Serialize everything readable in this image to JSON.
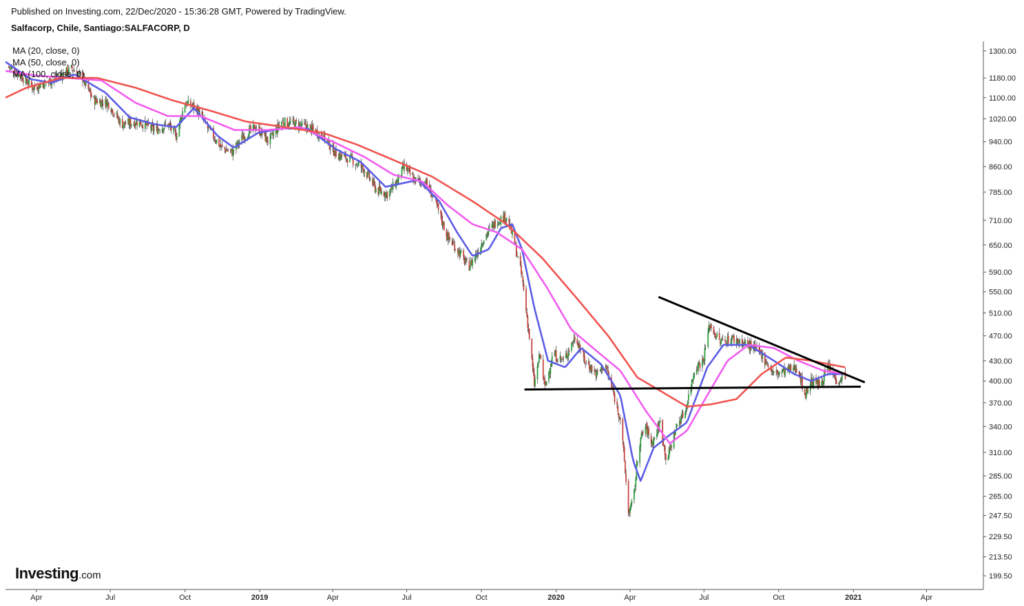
{
  "header": {
    "published": "Published on Investing.com, 22/Dec/2020 - 15:36:28 GMT, Powered by TradingView.",
    "symbol": "Salfacorp, Chile, Santiago:SALFACORP, D"
  },
  "legend": [
    {
      "label": "MA (20, close, 0)",
      "color": "#5b5ce6"
    },
    {
      "label": "MA (50, close, 0)",
      "color": "#f25cf0"
    },
    {
      "label": "MA (100, close, 0)",
      "color": "#f0534f"
    }
  ],
  "logo": {
    "brand": "Investing",
    "suffix": ".com"
  },
  "chart_data": {
    "type": "candlestick",
    "title": "Salfacorp, Chile, Santiago:SALFACORP, D",
    "y_scale": "log",
    "ylim": [
      190,
      1345
    ],
    "y_ticks": [
      {
        "value": 1300,
        "label": "1300.00"
      },
      {
        "value": 1180,
        "label": "1180.00"
      },
      {
        "value": 1100,
        "label": "1100.00"
      },
      {
        "value": 1020,
        "label": "1020.00"
      },
      {
        "value": 940,
        "label": "940.00"
      },
      {
        "value": 860,
        "label": "860.00"
      },
      {
        "value": 785,
        "label": "785.00"
      },
      {
        "value": 710,
        "label": "710.00"
      },
      {
        "value": 650,
        "label": "650.00"
      },
      {
        "value": 590,
        "label": "590.00"
      },
      {
        "value": 550,
        "label": "550.00"
      },
      {
        "value": 510,
        "label": "510.00"
      },
      {
        "value": 470,
        "label": "470.00"
      },
      {
        "value": 430,
        "label": "430.00"
      },
      {
        "value": 400,
        "label": "400.00"
      },
      {
        "value": 370,
        "label": "370.00"
      },
      {
        "value": 340,
        "label": "340.00"
      },
      {
        "value": 310,
        "label": "310.00"
      },
      {
        "value": 285,
        "label": "285.00"
      },
      {
        "value": 265,
        "label": "265.00"
      },
      {
        "value": 247.5,
        "label": "247.50"
      },
      {
        "value": 229.5,
        "label": "229.50"
      },
      {
        "value": 213.5,
        "label": "213.50"
      },
      {
        "value": 199.5,
        "label": "199.50"
      }
    ],
    "x_range": [
      "2018-02-22",
      "2021-06-10"
    ],
    "x_ticks": [
      {
        "date": "2018-04-01",
        "label": "Apr",
        "year": false
      },
      {
        "date": "2018-07-01",
        "label": "Jul",
        "year": false
      },
      {
        "date": "2018-10-01",
        "label": "Oct",
        "year": false
      },
      {
        "date": "2019-01-01",
        "label": "2019",
        "year": true
      },
      {
        "date": "2019-04-01",
        "label": "Apr",
        "year": false
      },
      {
        "date": "2019-07-01",
        "label": "Jul",
        "year": false
      },
      {
        "date": "2019-10-01",
        "label": "Oct",
        "year": false
      },
      {
        "date": "2020-01-01",
        "label": "2020",
        "year": true
      },
      {
        "date": "2020-04-01",
        "label": "Apr",
        "year": false
      },
      {
        "date": "2020-07-01",
        "label": "Jul",
        "year": false
      },
      {
        "date": "2020-10-01",
        "label": "Oct",
        "year": false
      },
      {
        "date": "2021-01-01",
        "label": "2021",
        "year": true
      },
      {
        "date": "2021-04-01",
        "label": "Apr",
        "year": false
      }
    ],
    "colors": {
      "up": "#2e9e3e",
      "down": "#c8453e",
      "wick": "#333333",
      "trendline": "#000000"
    },
    "price_path": [
      {
        "date": "2018-02-25",
        "close": 1230
      },
      {
        "date": "2018-03-10",
        "close": 1200
      },
      {
        "date": "2018-03-28",
        "close": 1140
      },
      {
        "date": "2018-04-20",
        "close": 1170
      },
      {
        "date": "2018-05-15",
        "close": 1220
      },
      {
        "date": "2018-05-28",
        "close": 1180
      },
      {
        "date": "2018-06-10",
        "close": 1090
      },
      {
        "date": "2018-06-28",
        "close": 1080
      },
      {
        "date": "2018-07-15",
        "close": 1000
      },
      {
        "date": "2018-08-05",
        "close": 1010
      },
      {
        "date": "2018-08-25",
        "close": 980
      },
      {
        "date": "2018-09-10",
        "close": 1000
      },
      {
        "date": "2018-09-20",
        "close": 960
      },
      {
        "date": "2018-10-01",
        "close": 1080
      },
      {
        "date": "2018-10-15",
        "close": 1060
      },
      {
        "date": "2018-10-28",
        "close": 990
      },
      {
        "date": "2018-11-15",
        "close": 920
      },
      {
        "date": "2018-11-28",
        "close": 905
      },
      {
        "date": "2018-12-12",
        "close": 960
      },
      {
        "date": "2018-12-28",
        "close": 990
      },
      {
        "date": "2019-01-12",
        "close": 940
      },
      {
        "date": "2019-01-28",
        "close": 1010
      },
      {
        "date": "2019-02-15",
        "close": 1000
      },
      {
        "date": "2019-03-01",
        "close": 990
      },
      {
        "date": "2019-03-20",
        "close": 960
      },
      {
        "date": "2019-04-05",
        "close": 900
      },
      {
        "date": "2019-04-25",
        "close": 880
      },
      {
        "date": "2019-05-10",
        "close": 850
      },
      {
        "date": "2019-05-25",
        "close": 790
      },
      {
        "date": "2019-06-08",
        "close": 780
      },
      {
        "date": "2019-06-20",
        "close": 820
      },
      {
        "date": "2019-06-28",
        "close": 860
      },
      {
        "date": "2019-07-10",
        "close": 820
      },
      {
        "date": "2019-07-25",
        "close": 810
      },
      {
        "date": "2019-08-05",
        "close": 760
      },
      {
        "date": "2019-08-20",
        "close": 670
      },
      {
        "date": "2019-09-05",
        "close": 630
      },
      {
        "date": "2019-09-15",
        "close": 600
      },
      {
        "date": "2019-09-25",
        "close": 630
      },
      {
        "date": "2019-10-05",
        "close": 670
      },
      {
        "date": "2019-10-20",
        "close": 710
      },
      {
        "date": "2019-11-01",
        "close": 720
      },
      {
        "date": "2019-11-10",
        "close": 660
      },
      {
        "date": "2019-11-20",
        "close": 580
      },
      {
        "date": "2019-11-28",
        "close": 480
      },
      {
        "date": "2019-12-05",
        "close": 395
      },
      {
        "date": "2019-12-12",
        "close": 440
      },
      {
        "date": "2019-12-18",
        "close": 390
      },
      {
        "date": "2019-12-28",
        "close": 440
      },
      {
        "date": "2020-01-10",
        "close": 430
      },
      {
        "date": "2020-01-25",
        "close": 470
      },
      {
        "date": "2020-02-05",
        "close": 430
      },
      {
        "date": "2020-02-20",
        "close": 410
      },
      {
        "date": "2020-03-01",
        "close": 425
      },
      {
        "date": "2020-03-12",
        "close": 380
      },
      {
        "date": "2020-03-20",
        "close": 350
      },
      {
        "date": "2020-03-25",
        "close": 300
      },
      {
        "date": "2020-03-30",
        "close": 250
      },
      {
        "date": "2020-04-05",
        "close": 260
      },
      {
        "date": "2020-04-12",
        "close": 320
      },
      {
        "date": "2020-04-20",
        "close": 340
      },
      {
        "date": "2020-04-28",
        "close": 320
      },
      {
        "date": "2020-05-08",
        "close": 345
      },
      {
        "date": "2020-05-16",
        "close": 300
      },
      {
        "date": "2020-05-28",
        "close": 340
      },
      {
        "date": "2020-06-08",
        "close": 360
      },
      {
        "date": "2020-06-20",
        "close": 420
      },
      {
        "date": "2020-06-30",
        "close": 430
      },
      {
        "date": "2020-07-08",
        "close": 490
      },
      {
        "date": "2020-07-20",
        "close": 460
      },
      {
        "date": "2020-08-05",
        "close": 465
      },
      {
        "date": "2020-08-25",
        "close": 455
      },
      {
        "date": "2020-09-10",
        "close": 440
      },
      {
        "date": "2020-09-25",
        "close": 410
      },
      {
        "date": "2020-10-10",
        "close": 415
      },
      {
        "date": "2020-10-25",
        "close": 420
      },
      {
        "date": "2020-11-02",
        "close": 380
      },
      {
        "date": "2020-11-10",
        "close": 400
      },
      {
        "date": "2020-11-20",
        "close": 395
      },
      {
        "date": "2020-12-01",
        "close": 420
      },
      {
        "date": "2020-12-12",
        "close": 400
      },
      {
        "date": "2020-12-22",
        "close": 410
      }
    ],
    "series": [
      {
        "name": "MA (20, close, 0)",
        "color": "#5b5ce6",
        "points": [
          {
            "date": "2018-02-22",
            "value": 1250
          },
          {
            "date": "2018-03-25",
            "value": 1175
          },
          {
            "date": "2018-04-20",
            "value": 1160
          },
          {
            "date": "2018-05-18",
            "value": 1195
          },
          {
            "date": "2018-06-25",
            "value": 1120
          },
          {
            "date": "2018-07-25",
            "value": 1025
          },
          {
            "date": "2018-08-25",
            "value": 1000
          },
          {
            "date": "2018-09-20",
            "value": 990
          },
          {
            "date": "2018-10-12",
            "value": 1060
          },
          {
            "date": "2018-11-10",
            "value": 960
          },
          {
            "date": "2018-11-30",
            "value": 920
          },
          {
            "date": "2018-12-30",
            "value": 970
          },
          {
            "date": "2019-01-28",
            "value": 985
          },
          {
            "date": "2019-03-01",
            "value": 985
          },
          {
            "date": "2019-04-05",
            "value": 915
          },
          {
            "date": "2019-05-05",
            "value": 875
          },
          {
            "date": "2019-06-05",
            "value": 800
          },
          {
            "date": "2019-06-25",
            "value": 810
          },
          {
            "date": "2019-07-15",
            "value": 820
          },
          {
            "date": "2019-08-10",
            "value": 760
          },
          {
            "date": "2019-09-01",
            "value": 680
          },
          {
            "date": "2019-09-20",
            "value": 625
          },
          {
            "date": "2019-10-10",
            "value": 640
          },
          {
            "date": "2019-10-25",
            "value": 690
          },
          {
            "date": "2019-11-08",
            "value": 700
          },
          {
            "date": "2019-11-20",
            "value": 640
          },
          {
            "date": "2019-12-05",
            "value": 520
          },
          {
            "date": "2019-12-22",
            "value": 430
          },
          {
            "date": "2020-01-12",
            "value": 420
          },
          {
            "date": "2020-02-01",
            "value": 450
          },
          {
            "date": "2020-02-25",
            "value": 425
          },
          {
            "date": "2020-03-20",
            "value": 380
          },
          {
            "date": "2020-04-05",
            "value": 300
          },
          {
            "date": "2020-04-14",
            "value": 280
          },
          {
            "date": "2020-04-30",
            "value": 315
          },
          {
            "date": "2020-05-20",
            "value": 330
          },
          {
            "date": "2020-06-10",
            "value": 345
          },
          {
            "date": "2020-07-05",
            "value": 420
          },
          {
            "date": "2020-07-25",
            "value": 455
          },
          {
            "date": "2020-08-25",
            "value": 455
          },
          {
            "date": "2020-09-25",
            "value": 430
          },
          {
            "date": "2020-10-20",
            "value": 410
          },
          {
            "date": "2020-11-10",
            "value": 400
          },
          {
            "date": "2020-12-01",
            "value": 410
          },
          {
            "date": "2020-12-22",
            "value": 410
          }
        ]
      },
      {
        "name": "MA (50, close, 0)",
        "color": "#f25cf0",
        "points": [
          {
            "date": "2018-02-22",
            "value": 1210
          },
          {
            "date": "2018-04-01",
            "value": 1190
          },
          {
            "date": "2018-05-10",
            "value": 1180
          },
          {
            "date": "2018-06-20",
            "value": 1170
          },
          {
            "date": "2018-08-01",
            "value": 1080
          },
          {
            "date": "2018-09-10",
            "value": 1030
          },
          {
            "date": "2018-10-20",
            "value": 1030
          },
          {
            "date": "2018-12-01",
            "value": 980
          },
          {
            "date": "2019-01-10",
            "value": 980
          },
          {
            "date": "2019-02-20",
            "value": 990
          },
          {
            "date": "2019-04-01",
            "value": 940
          },
          {
            "date": "2019-05-10",
            "value": 890
          },
          {
            "date": "2019-06-15",
            "value": 835
          },
          {
            "date": "2019-07-20",
            "value": 815
          },
          {
            "date": "2019-08-20",
            "value": 750
          },
          {
            "date": "2019-09-20",
            "value": 700
          },
          {
            "date": "2019-10-20",
            "value": 680
          },
          {
            "date": "2019-11-20",
            "value": 640
          },
          {
            "date": "2019-12-20",
            "value": 560
          },
          {
            "date": "2020-01-20",
            "value": 480
          },
          {
            "date": "2020-02-20",
            "value": 445
          },
          {
            "date": "2020-03-20",
            "value": 415
          },
          {
            "date": "2020-04-20",
            "value": 360
          },
          {
            "date": "2020-05-20",
            "value": 320
          },
          {
            "date": "2020-06-10",
            "value": 335
          },
          {
            "date": "2020-07-05",
            "value": 380
          },
          {
            "date": "2020-07-30",
            "value": 430
          },
          {
            "date": "2020-08-25",
            "value": 455
          },
          {
            "date": "2020-09-25",
            "value": 450
          },
          {
            "date": "2020-10-25",
            "value": 430
          },
          {
            "date": "2020-11-25",
            "value": 415
          },
          {
            "date": "2020-12-22",
            "value": 410
          }
        ]
      },
      {
        "name": "MA (100, close, 0)",
        "color": "#f0534f",
        "points": [
          {
            "date": "2018-02-22",
            "value": 1100
          },
          {
            "date": "2018-03-20",
            "value": 1140
          },
          {
            "date": "2018-05-01",
            "value": 1180
          },
          {
            "date": "2018-06-15",
            "value": 1180
          },
          {
            "date": "2018-08-01",
            "value": 1140
          },
          {
            "date": "2018-09-15",
            "value": 1090
          },
          {
            "date": "2018-11-01",
            "value": 1050
          },
          {
            "date": "2018-12-15",
            "value": 1010
          },
          {
            "date": "2019-02-01",
            "value": 990
          },
          {
            "date": "2019-03-20",
            "value": 970
          },
          {
            "date": "2019-05-01",
            "value": 930
          },
          {
            "date": "2019-06-15",
            "value": 880
          },
          {
            "date": "2019-08-01",
            "value": 830
          },
          {
            "date": "2019-09-20",
            "value": 760
          },
          {
            "date": "2019-11-01",
            "value": 700
          },
          {
            "date": "2019-12-15",
            "value": 620
          },
          {
            "date": "2020-01-25",
            "value": 540
          },
          {
            "date": "2020-03-05",
            "value": 470
          },
          {
            "date": "2020-04-10",
            "value": 405
          },
          {
            "date": "2020-05-10",
            "value": 385
          },
          {
            "date": "2020-06-10",
            "value": 365
          },
          {
            "date": "2020-07-10",
            "value": 368
          },
          {
            "date": "2020-08-10",
            "value": 375
          },
          {
            "date": "2020-09-10",
            "value": 410
          },
          {
            "date": "2020-10-10",
            "value": 435
          },
          {
            "date": "2020-11-10",
            "value": 430
          },
          {
            "date": "2020-12-22",
            "value": 420
          }
        ]
      }
    ],
    "trendlines": [
      {
        "from": {
          "date": "2020-05-06",
          "value": 540
        },
        "to": {
          "date": "2021-01-15",
          "value": 398
        }
      },
      {
        "from": {
          "date": "2019-11-23",
          "value": 388
        },
        "to": {
          "date": "2021-01-10",
          "value": 392
        }
      }
    ]
  }
}
